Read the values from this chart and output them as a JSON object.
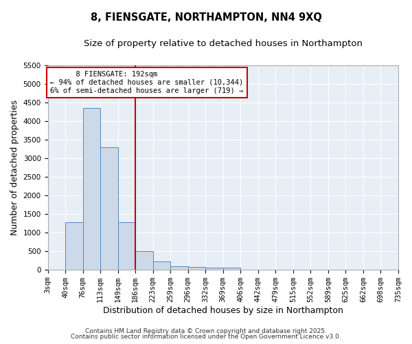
{
  "title": "8, FIENSGATE, NORTHAMPTON, NN4 9XQ",
  "subtitle": "Size of property relative to detached houses in Northampton",
  "xlabel": "Distribution of detached houses by size in Northampton",
  "ylabel": "Number of detached properties",
  "bin_labels": [
    "3sqm",
    "40sqm",
    "76sqm",
    "113sqm",
    "149sqm",
    "186sqm",
    "223sqm",
    "259sqm",
    "296sqm",
    "332sqm",
    "369sqm",
    "406sqm",
    "442sqm",
    "479sqm",
    "515sqm",
    "552sqm",
    "589sqm",
    "625sqm",
    "662sqm",
    "698sqm",
    "735sqm"
  ],
  "bar_values": [
    0,
    1270,
    4350,
    3300,
    1280,
    500,
    220,
    90,
    60,
    50,
    50,
    0,
    0,
    0,
    0,
    0,
    0,
    0,
    0,
    0
  ],
  "bar_color": "#ccd9e8",
  "bar_edge_color": "#5588bb",
  "vline_x_index": 5,
  "vline_color": "#cc0000",
  "ylim": [
    0,
    5500
  ],
  "yticks": [
    0,
    500,
    1000,
    1500,
    2000,
    2500,
    3000,
    3500,
    4000,
    4500,
    5000,
    5500
  ],
  "annotation_title": "8 FIENSGATE: 192sqm",
  "annotation_line1": "← 94% of detached houses are smaller (10,344)",
  "annotation_line2": "6% of semi-detached houses are larger (719) →",
  "annotation_box_color": "#ffffff",
  "annotation_edge_color": "#cc0000",
  "bg_color": "#e8eef5",
  "grid_color": "#ffffff",
  "fig_bg_color": "#ffffff",
  "footer1": "Contains HM Land Registry data © Crown copyright and database right 2025.",
  "footer2": "Contains public sector information licensed under the Open Government Licence v3.0.",
  "title_fontsize": 10.5,
  "subtitle_fontsize": 9.5,
  "axis_label_fontsize": 9,
  "tick_fontsize": 7.5,
  "footer_fontsize": 6.5
}
